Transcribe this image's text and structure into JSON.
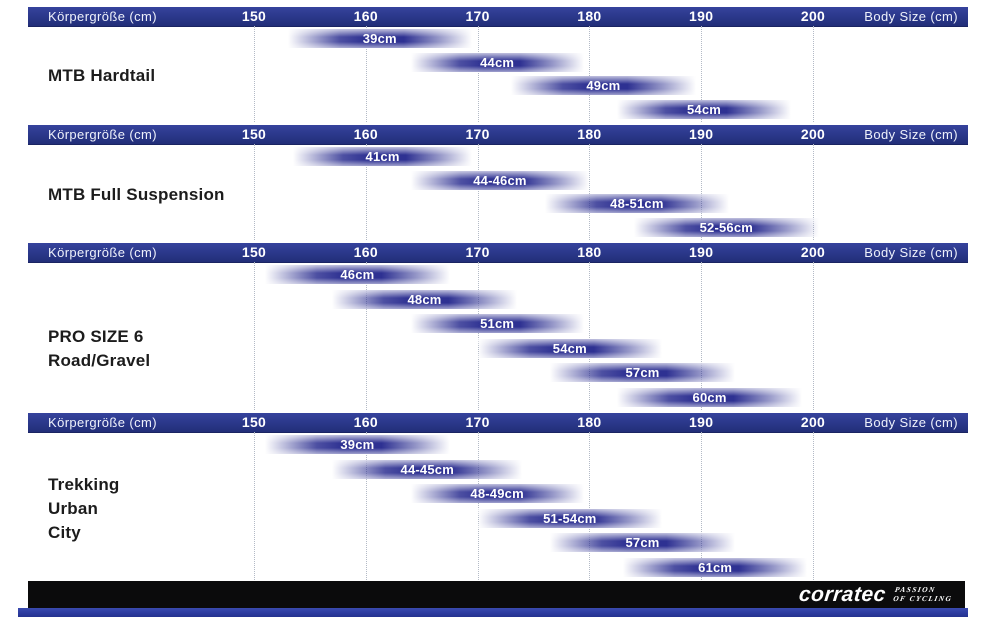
{
  "axis": {
    "left_label": "Körpergröße (cm)",
    "right_label": "Body Size (cm)",
    "ticks": [
      150,
      160,
      170,
      180,
      190,
      200
    ],
    "unit": "cm"
  },
  "colors": {
    "header_blue": "#2a3789",
    "bar_blue": "#2e3192",
    "grid_dot": "#b3bac6",
    "footer_black": "#0b0b0c",
    "footer_stripe_blue": "#2b3a9e",
    "title_text": "#1c1c1c",
    "label_white": "#ffffff"
  },
  "footer": {
    "brand": "corratec",
    "tagline_line1": "PASSION",
    "tagline_line2": "OF CYCLING"
  },
  "chart_data": [
    {
      "type": "bar",
      "subtype": "horizontal-range",
      "title": "MTB Hardtail",
      "title_lines": [
        "MTB Hardtail"
      ],
      "xlabel_left": "Körpergröße (cm)",
      "xlabel_right": "Body Size (cm)",
      "xlim": [
        150,
        200
      ],
      "xticks": [
        150,
        160,
        170,
        180,
        190,
        200
      ],
      "bars": [
        {
          "label": "39cm",
          "frame_size": "39cm",
          "body_size_cm": [
            153,
            169.5
          ]
        },
        {
          "label": "44cm",
          "frame_size": "44cm",
          "body_size_cm": [
            164,
            179.5
          ]
        },
        {
          "label": "49cm",
          "frame_size": "49cm",
          "body_size_cm": [
            173,
            189.5
          ]
        },
        {
          "label": "54cm",
          "frame_size": "54cm",
          "body_size_cm": [
            182.5,
            198
          ]
        }
      ]
    },
    {
      "type": "bar",
      "subtype": "horizontal-range",
      "title": "MTB Full Suspension",
      "title_lines": [
        "MTB Full Suspension"
      ],
      "xlabel_left": "Körpergröße (cm)",
      "xlabel_right": "Body Size (cm)",
      "xlim": [
        150,
        200
      ],
      "xticks": [
        150,
        160,
        170,
        180,
        190,
        200
      ],
      "bars": [
        {
          "label": "41cm",
          "frame_size": "41cm",
          "body_size_cm": [
            153.5,
            169.5
          ]
        },
        {
          "label": "44-46cm",
          "frame_size": "44-46cm",
          "body_size_cm": [
            164,
            180
          ]
        },
        {
          "label": "48-51cm",
          "frame_size": "48-51cm",
          "body_size_cm": [
            176,
            192.5
          ]
        },
        {
          "label": "52-56cm",
          "frame_size": "52-56cm",
          "body_size_cm": [
            184,
            200.5
          ]
        }
      ]
    },
    {
      "type": "bar",
      "subtype": "horizontal-range",
      "title": "PRO SIZE 6 Road/Gravel",
      "title_lines": [
        "PRO SIZE 6",
        "Road/Gravel"
      ],
      "xlabel_left": "Körpergröße (cm)",
      "xlabel_right": "Body Size (cm)",
      "xlim": [
        150,
        200
      ],
      "xticks": [
        150,
        160,
        170,
        180,
        190,
        200
      ],
      "bars": [
        {
          "label": "46cm",
          "frame_size": "46cm",
          "body_size_cm": [
            151,
            167.5
          ]
        },
        {
          "label": "48cm",
          "frame_size": "48cm",
          "body_size_cm": [
            157,
            173.5
          ]
        },
        {
          "label": "51cm",
          "frame_size": "51cm",
          "body_size_cm": [
            164,
            179.5
          ]
        },
        {
          "label": "54cm",
          "frame_size": "54cm",
          "body_size_cm": [
            170,
            186.5
          ]
        },
        {
          "label": "57cm",
          "frame_size": "57cm",
          "body_size_cm": [
            176.5,
            193
          ]
        },
        {
          "label": "60cm",
          "frame_size": "60cm",
          "body_size_cm": [
            182.5,
            199
          ]
        }
      ]
    },
    {
      "type": "bar",
      "subtype": "horizontal-range",
      "title": "Trekking Urban City",
      "title_lines": [
        "Trekking",
        "Urban",
        "City"
      ],
      "xlabel_left": "Körpergröße (cm)",
      "xlabel_right": "Body Size (cm)",
      "xlim": [
        150,
        200
      ],
      "xticks": [
        150,
        160,
        170,
        180,
        190,
        200
      ],
      "bars": [
        {
          "label": "39cm",
          "frame_size": "39cm",
          "body_size_cm": [
            151,
            167.5
          ]
        },
        {
          "label": "44-45cm",
          "frame_size": "44-45cm",
          "body_size_cm": [
            157,
            174
          ]
        },
        {
          "label": "48-49cm",
          "frame_size": "48-49cm",
          "body_size_cm": [
            164,
            179.5
          ]
        },
        {
          "label": "51-54cm",
          "frame_size": "51-54cm",
          "body_size_cm": [
            170,
            186.5
          ]
        },
        {
          "label": "57cm",
          "frame_size": "57cm",
          "body_size_cm": [
            176.5,
            193
          ]
        },
        {
          "label": "61cm",
          "frame_size": "61cm",
          "body_size_cm": [
            183,
            199.5
          ]
        }
      ]
    }
  ]
}
